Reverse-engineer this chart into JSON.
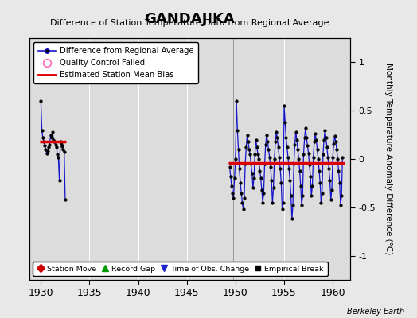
{
  "title": "GANDAJIKA",
  "subtitle": "Difference of Station Temperature Data from Regional Average",
  "ylabel": "Monthly Temperature Anomaly Difference (°C)",
  "credit": "Berkeley Earth",
  "xlim": [
    1928.8,
    1961.8
  ],
  "ylim": [
    -1.25,
    1.25
  ],
  "yticks": [
    -1,
    -0.5,
    0,
    0.5,
    1
  ],
  "xticks": [
    1930,
    1935,
    1940,
    1945,
    1950,
    1955,
    1960
  ],
  "bg_color": "#e8e8e8",
  "plot_bg": "#dcdcdc",
  "grid_color": "#ffffff",
  "line_color": "#1414cc",
  "dot_color": "#000000",
  "bias_color": "#dd0000",
  "segment1_bias": 0.18,
  "segment1_x_start": 1929.9,
  "segment1_x_end": 1932.6,
  "segment2_bias": -0.04,
  "segment2_x_start": 1949.3,
  "segment2_x_end": 1961.2,
  "record_gap_x": 1949.75,
  "record_gap_y": -1.12,
  "seg1_data_x": [
    1930.0,
    1930.1,
    1930.2,
    1930.3,
    1930.4,
    1930.5,
    1930.6,
    1930.7,
    1930.8,
    1930.9,
    1931.0,
    1931.1,
    1931.2,
    1931.3,
    1931.4,
    1931.5,
    1931.6,
    1931.7,
    1931.8,
    1931.9,
    1932.0,
    1932.1,
    1932.2,
    1932.3,
    1932.4,
    1932.5
  ],
  "seg1_data_y": [
    0.6,
    0.3,
    0.22,
    0.18,
    0.14,
    0.1,
    0.06,
    0.08,
    0.12,
    0.15,
    0.25,
    0.22,
    0.28,
    0.2,
    0.18,
    0.15,
    0.12,
    0.05,
    0.02,
    -0.22,
    0.18,
    0.16,
    0.13,
    0.1,
    0.07,
    -0.42
  ],
  "seg2_data_x": [
    1949.4,
    1949.5,
    1949.6,
    1949.7,
    1949.8,
    1949.9,
    1950.0,
    1950.1,
    1950.2,
    1950.3,
    1950.4,
    1950.5,
    1950.6,
    1950.7,
    1950.8,
    1950.9,
    1951.0,
    1951.1,
    1951.2,
    1951.3,
    1951.4,
    1951.5,
    1951.6,
    1951.7,
    1951.8,
    1951.9,
    1952.0,
    1952.1,
    1952.2,
    1952.3,
    1952.4,
    1952.5,
    1952.6,
    1952.7,
    1952.8,
    1952.9,
    1953.0,
    1953.1,
    1953.2,
    1953.3,
    1953.4,
    1953.5,
    1953.6,
    1953.7,
    1953.8,
    1953.9,
    1954.0,
    1954.1,
    1954.2,
    1954.3,
    1954.4,
    1954.5,
    1954.6,
    1954.7,
    1954.8,
    1954.9,
    1955.0,
    1955.1,
    1955.2,
    1955.3,
    1955.4,
    1955.5,
    1955.6,
    1955.7,
    1955.8,
    1955.9,
    1956.0,
    1956.1,
    1956.2,
    1956.3,
    1956.4,
    1956.5,
    1956.6,
    1956.7,
    1956.8,
    1956.9,
    1957.0,
    1957.1,
    1957.2,
    1957.3,
    1957.4,
    1957.5,
    1957.6,
    1957.7,
    1957.8,
    1957.9,
    1958.0,
    1958.1,
    1958.2,
    1958.3,
    1958.4,
    1958.5,
    1958.6,
    1958.7,
    1958.8,
    1958.9,
    1959.0,
    1959.1,
    1959.2,
    1959.3,
    1959.4,
    1959.5,
    1959.6,
    1959.7,
    1959.8,
    1959.9,
    1960.0,
    1960.1,
    1960.2,
    1960.3,
    1960.4,
    1960.5,
    1960.6,
    1960.7,
    1960.8,
    1960.9,
    1961.0
  ],
  "seg2_data_y": [
    -0.08,
    -0.18,
    -0.28,
    -0.35,
    -0.4,
    -0.2,
    0.0,
    0.6,
    0.3,
    0.1,
    -0.1,
    -0.25,
    -0.35,
    -0.45,
    -0.52,
    -0.4,
    -0.05,
    0.12,
    0.25,
    0.18,
    0.1,
    0.05,
    -0.05,
    -0.15,
    -0.3,
    -0.2,
    0.05,
    0.2,
    0.12,
    0.05,
    0.0,
    -0.12,
    -0.2,
    -0.32,
    -0.45,
    -0.35,
    -0.05,
    0.15,
    0.25,
    0.18,
    0.1,
    0.02,
    -0.08,
    -0.22,
    -0.45,
    -0.3,
    0.0,
    0.18,
    0.28,
    0.22,
    0.12,
    0.02,
    -0.1,
    -0.25,
    -0.52,
    -0.45,
    0.55,
    0.38,
    0.22,
    0.12,
    0.02,
    -0.1,
    -0.22,
    -0.38,
    -0.62,
    -0.48,
    -0.05,
    0.15,
    0.28,
    0.2,
    0.1,
    0.0,
    -0.12,
    -0.28,
    -0.48,
    -0.38,
    0.05,
    0.22,
    0.32,
    0.22,
    0.14,
    0.06,
    -0.06,
    -0.18,
    -0.38,
    -0.28,
    0.02,
    0.18,
    0.26,
    0.2,
    0.1,
    0.0,
    -0.12,
    -0.25,
    -0.45,
    -0.35,
    0.05,
    0.2,
    0.3,
    0.22,
    0.12,
    0.02,
    -0.1,
    -0.22,
    -0.42,
    -0.32,
    0.02,
    0.16,
    0.24,
    0.18,
    0.1,
    0.0,
    -0.12,
    -0.25,
    -0.48,
    -0.38,
    0.02
  ]
}
